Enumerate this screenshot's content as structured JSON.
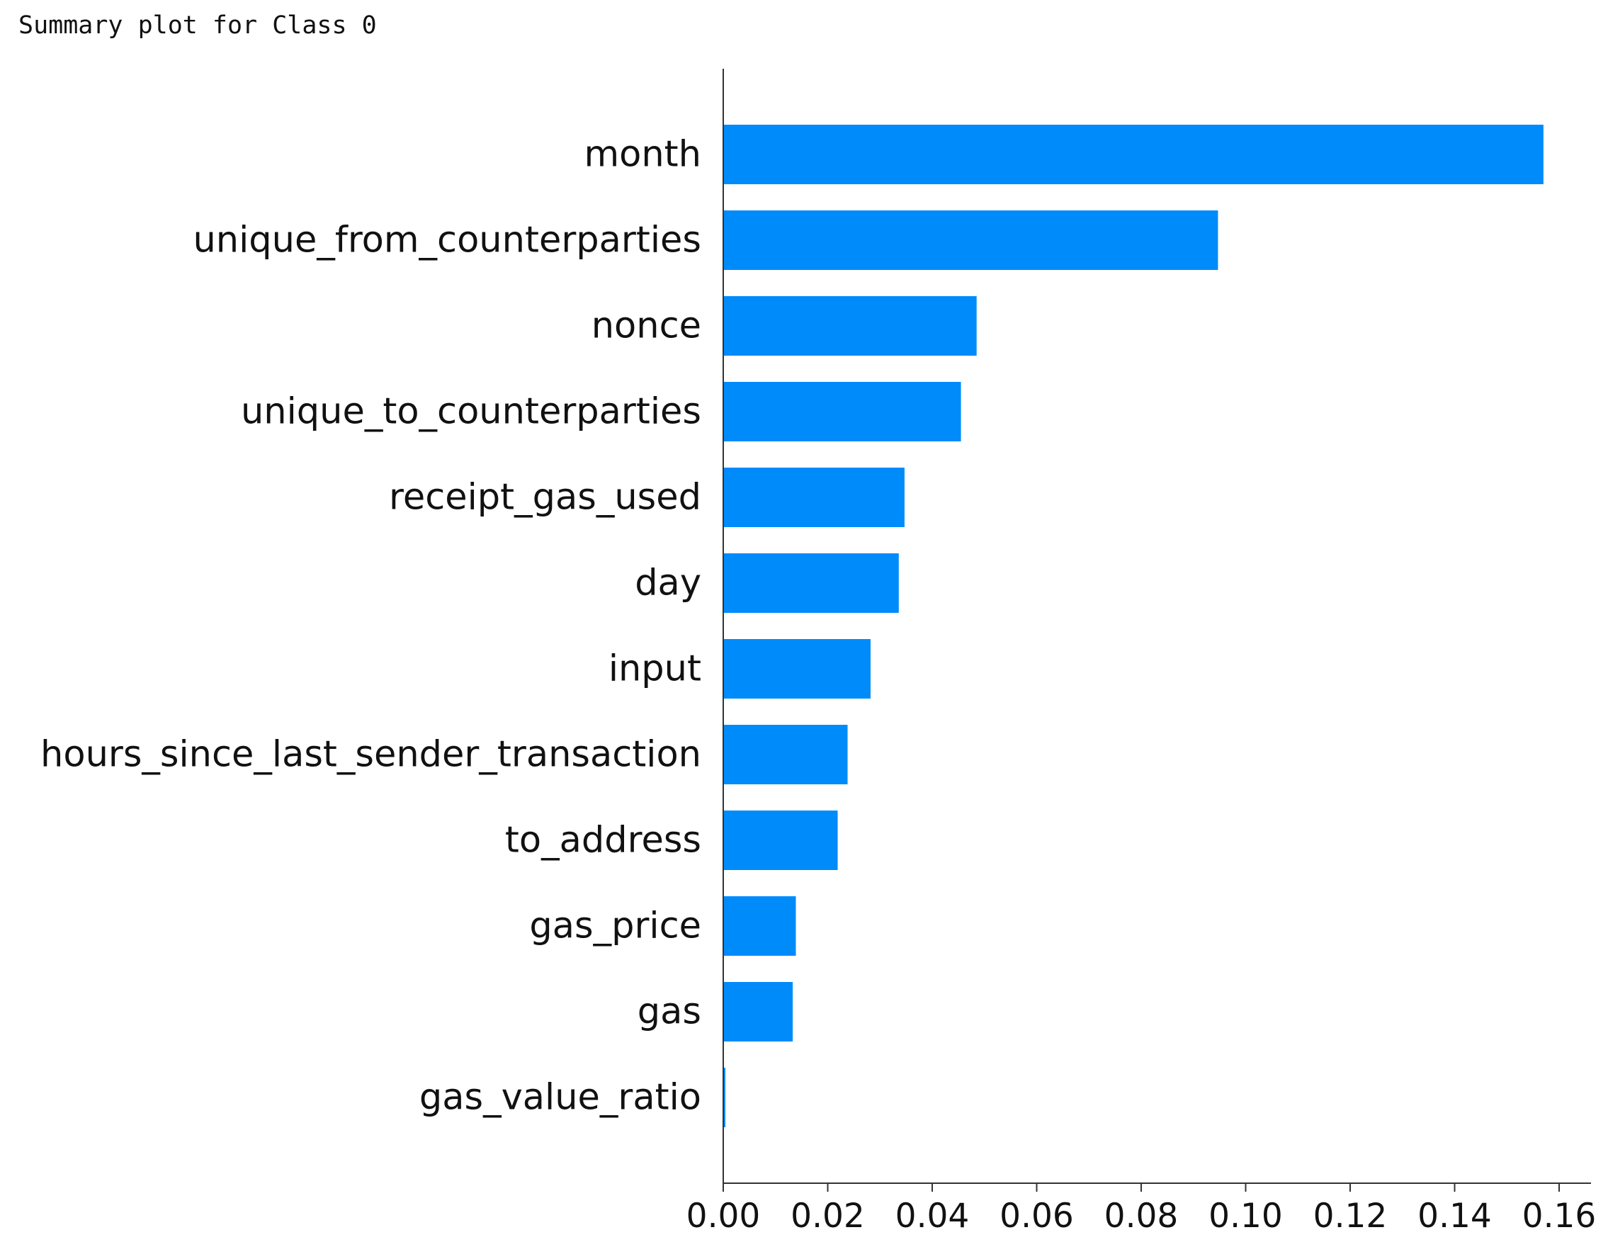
{
  "chart_data": {
    "type": "bar",
    "orientation": "horizontal",
    "title": "Summary plot for Class 0",
    "xlabel": "",
    "ylabel": "",
    "categories": [
      "month",
      "unique_from_counterparties",
      "nonce",
      "unique_to_counterparties",
      "receipt_gas_used",
      "day",
      "input",
      "hours_since_last_sender_transaction",
      "to_address",
      "gas_price",
      "gas",
      "gas_value_ratio"
    ],
    "values": [
      0.157,
      0.0947,
      0.0485,
      0.0455,
      0.0347,
      0.0336,
      0.0282,
      0.0238,
      0.0219,
      0.0139,
      0.0133,
      0.0004
    ],
    "xlim": [
      0,
      0.16
    ],
    "xticks": [
      "0.00",
      "0.02",
      "0.04",
      "0.06",
      "0.08",
      "0.10",
      "0.12",
      "0.14",
      "0.16"
    ],
    "bar_color": "#008bfb",
    "grid": false,
    "legend": "none"
  }
}
